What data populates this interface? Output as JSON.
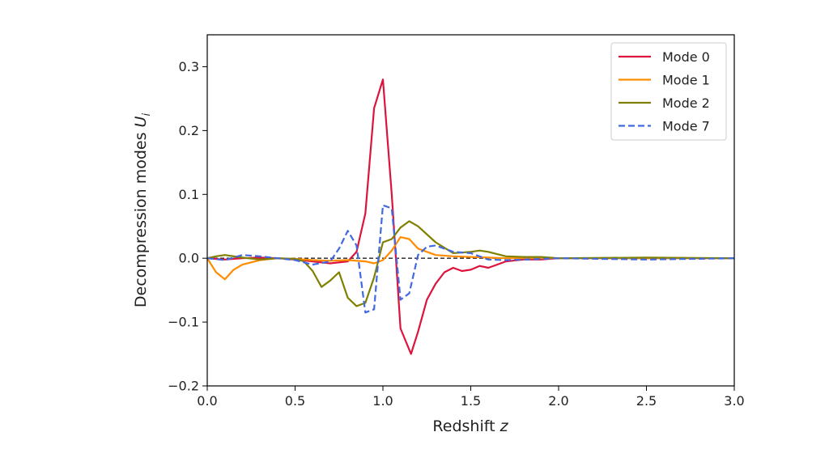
{
  "chart_data": {
    "type": "line",
    "title": "",
    "xlabel": "Redshift",
    "xlabel_var": "z",
    "ylabel": "Decompression modes",
    "ylabel_var": "U",
    "ylabel_sub": "i",
    "xlim": [
      0.0,
      3.0
    ],
    "ylim": [
      -0.2,
      0.35
    ],
    "xticks": [
      0.0,
      0.5,
      1.0,
      1.5,
      2.0,
      2.5,
      3.0
    ],
    "xtick_labels": [
      "0.0",
      "0.5",
      "1.0",
      "1.5",
      "2.0",
      "2.5",
      "3.0"
    ],
    "yticks": [
      -0.2,
      -0.1,
      0.0,
      0.1,
      0.2,
      0.3
    ],
    "ytick_labels": [
      "−0.2",
      "−0.1",
      "0.0",
      "0.1",
      "0.2",
      "0.3"
    ],
    "grid": false,
    "legend_position": "top-right",
    "zero_line": {
      "y": 0.0,
      "color": "#222222",
      "style": "dashed"
    },
    "series": [
      {
        "name": "Mode 0",
        "color": "#dc143c",
        "style": "solid",
        "x": [
          0.0,
          0.1,
          0.2,
          0.3,
          0.4,
          0.5,
          0.6,
          0.7,
          0.8,
          0.85,
          0.9,
          0.95,
          1.0,
          1.05,
          1.1,
          1.16,
          1.2,
          1.25,
          1.3,
          1.35,
          1.4,
          1.45,
          1.5,
          1.55,
          1.6,
          1.65,
          1.7,
          1.8,
          1.9,
          2.0,
          2.2,
          2.5,
          3.0
        ],
        "y": [
          0.0,
          -0.002,
          0.0,
          0.001,
          0.0,
          -0.002,
          -0.005,
          -0.008,
          -0.005,
          0.01,
          0.07,
          0.235,
          0.28,
          0.1,
          -0.11,
          -0.15,
          -0.115,
          -0.065,
          -0.04,
          -0.022,
          -0.015,
          -0.02,
          -0.018,
          -0.012,
          -0.015,
          -0.01,
          -0.005,
          -0.002,
          -0.002,
          0.0,
          0.0,
          0.0,
          0.0
        ]
      },
      {
        "name": "Mode 1",
        "color": "#ff8c00",
        "style": "solid",
        "x": [
          0.0,
          0.05,
          0.1,
          0.15,
          0.2,
          0.3,
          0.4,
          0.5,
          0.6,
          0.7,
          0.8,
          0.9,
          0.95,
          1.0,
          1.05,
          1.1,
          1.15,
          1.2,
          1.3,
          1.4,
          1.5,
          1.6,
          1.7,
          1.8,
          1.9,
          2.0,
          2.5,
          3.0
        ],
        "y": [
          0.0,
          -0.022,
          -0.033,
          -0.018,
          -0.01,
          -0.003,
          0.0,
          -0.001,
          -0.003,
          -0.004,
          -0.003,
          -0.005,
          -0.008,
          -0.003,
          0.012,
          0.033,
          0.03,
          0.015,
          0.005,
          0.003,
          0.002,
          0.001,
          0.0,
          0.0,
          0.0,
          0.0,
          0.0,
          0.0
        ]
      },
      {
        "name": "Mode 2",
        "color": "#808000",
        "style": "solid",
        "x": [
          0.0,
          0.05,
          0.1,
          0.2,
          0.3,
          0.4,
          0.5,
          0.55,
          0.6,
          0.65,
          0.7,
          0.75,
          0.8,
          0.85,
          0.9,
          0.95,
          1.0,
          1.05,
          1.1,
          1.15,
          1.2,
          1.3,
          1.4,
          1.5,
          1.55,
          1.6,
          1.7,
          1.8,
          1.9,
          2.0,
          2.5,
          3.0
        ],
        "y": [
          0.0,
          0.003,
          0.005,
          0.001,
          -0.002,
          0.0,
          -0.001,
          -0.005,
          -0.02,
          -0.045,
          -0.035,
          -0.022,
          -0.062,
          -0.075,
          -0.07,
          -0.03,
          0.025,
          0.03,
          0.048,
          0.058,
          0.05,
          0.025,
          0.008,
          0.01,
          0.012,
          0.01,
          0.003,
          0.002,
          0.002,
          0.0,
          0.001,
          0.0
        ]
      },
      {
        "name": "Mode 7",
        "color": "#4169e1",
        "style": "dashed",
        "x": [
          0.0,
          0.1,
          0.2,
          0.3,
          0.4,
          0.5,
          0.6,
          0.7,
          0.75,
          0.8,
          0.85,
          0.9,
          0.95,
          1.0,
          1.05,
          1.1,
          1.15,
          1.2,
          1.25,
          1.3,
          1.4,
          1.5,
          1.6,
          1.7,
          1.8,
          1.9,
          2.0,
          2.5,
          3.0
        ],
        "y": [
          0.0,
          -0.003,
          0.005,
          0.003,
          0.0,
          -0.003,
          -0.01,
          -0.005,
          0.015,
          0.043,
          0.02,
          -0.085,
          -0.08,
          0.083,
          0.078,
          -0.065,
          -0.055,
          0.005,
          0.018,
          0.02,
          0.01,
          0.008,
          -0.002,
          -0.003,
          -0.002,
          -0.001,
          0.0,
          -0.002,
          0.0
        ]
      }
    ]
  }
}
